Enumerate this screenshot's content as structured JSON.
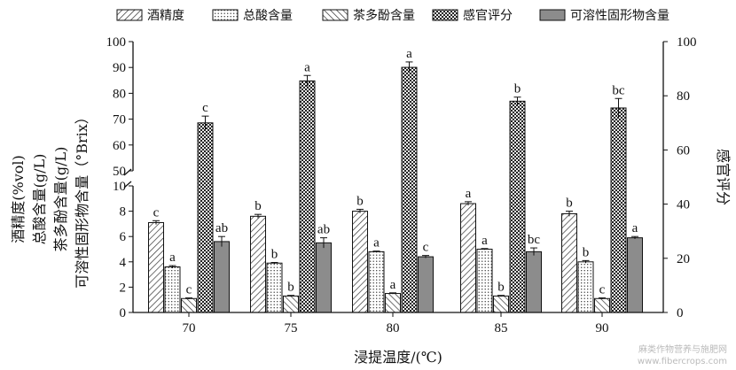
{
  "chart_data": {
    "type": "bar",
    "categories": [
      "70",
      "75",
      "80",
      "85",
      "90"
    ],
    "xlabel": "浸提温度/(℃)",
    "ylabel_left": [
      "酒精度(%vol)",
      "总酸含量(g/L)",
      "茶多酚含量(g/L)",
      "可溶性固形物含量（°Brix）"
    ],
    "ylabel_right": "感官评分",
    "y_left_lower_ticks": [
      "0",
      "2",
      "4",
      "6",
      "8",
      "10"
    ],
    "y_left_upper_ticks": [
      "50",
      "60",
      "70",
      "80",
      "90",
      "100"
    ],
    "y_right_ticks": [
      "0",
      "20",
      "40",
      "60",
      "80",
      "100"
    ],
    "ylim_left_lower": [
      0,
      10
    ],
    "ylim_left_upper": [
      50,
      100
    ],
    "ylim_right": [
      0,
      100
    ],
    "axis_break": true,
    "legend_position": "top",
    "series": [
      {
        "name": "酒精度",
        "axis": "left",
        "pattern": "diagonal-hatch",
        "values": [
          7.1,
          7.6,
          8.0,
          8.6,
          7.8
        ],
        "errors": [
          0.15,
          0.15,
          0.15,
          0.15,
          0.2
        ],
        "labels": [
          "c",
          "b",
          "b",
          "a",
          "b"
        ]
      },
      {
        "name": "总酸含量",
        "axis": "left",
        "pattern": "dots",
        "values": [
          3.6,
          3.9,
          4.8,
          5.0,
          4.0
        ],
        "errors": [
          0.1,
          0.05,
          0.05,
          0.05,
          0.1
        ],
        "labels": [
          "a",
          "b",
          "a",
          "a",
          "b"
        ]
      },
      {
        "name": "茶多酚含量",
        "axis": "left",
        "pattern": "back-hatch",
        "values": [
          1.1,
          1.3,
          1.5,
          1.3,
          1.1
        ],
        "errors": [
          0.05,
          0.05,
          0.05,
          0.05,
          0.05
        ],
        "labels": [
          "c",
          "b",
          "a",
          "b",
          "c"
        ]
      },
      {
        "name": "感官评分",
        "axis": "right",
        "pattern": "crosshatch",
        "values": [
          70,
          85.5,
          90.5,
          78,
          75.5
        ],
        "errors": [
          2.5,
          2,
          2,
          1.5,
          3.5
        ],
        "labels": [
          "c",
          "a",
          "a",
          "b",
          "bc"
        ]
      },
      {
        "name": "可溶性固形物含量",
        "axis": "left",
        "pattern": "solid-gray",
        "values": [
          5.6,
          5.5,
          4.4,
          4.8,
          5.9
        ],
        "errors": [
          0.4,
          0.4,
          0.1,
          0.3,
          0.1
        ],
        "labels": [
          "ab",
          "ab",
          "c",
          "bc",
          "a"
        ]
      }
    ]
  },
  "watermark": "麻类作物营养与施肥网\nwww.fibercrops.com",
  "colors": {
    "axis": "#111111",
    "gray_bar": "#8c8c8c"
  }
}
